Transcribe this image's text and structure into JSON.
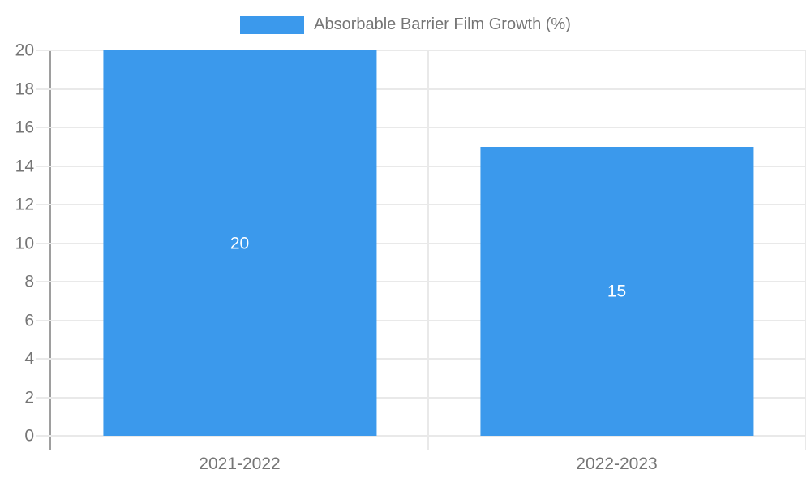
{
  "chart_data": {
    "type": "bar",
    "title": "",
    "legend_label": "Absorbable Barrier Film Growth (%)",
    "legend_position": "top",
    "categories": [
      "2021-2022",
      "2022-2023"
    ],
    "series": [
      {
        "name": "Absorbable Barrier Film Growth (%)",
        "values": [
          20,
          15
        ]
      }
    ],
    "data_labels": [
      "20",
      "15"
    ],
    "xlabel": "",
    "ylabel": "",
    "ylim": [
      0,
      20
    ],
    "yticks": [
      0,
      2,
      4,
      6,
      8,
      10,
      12,
      14,
      16,
      18,
      20
    ],
    "grid": true,
    "colors": {
      "bar": "#3B99EC",
      "grid": "#e9e9e9",
      "axis": "#9e9e9e",
      "tick_label": "#757575",
      "data_label": "#ffffff",
      "background": "#ffffff"
    }
  }
}
